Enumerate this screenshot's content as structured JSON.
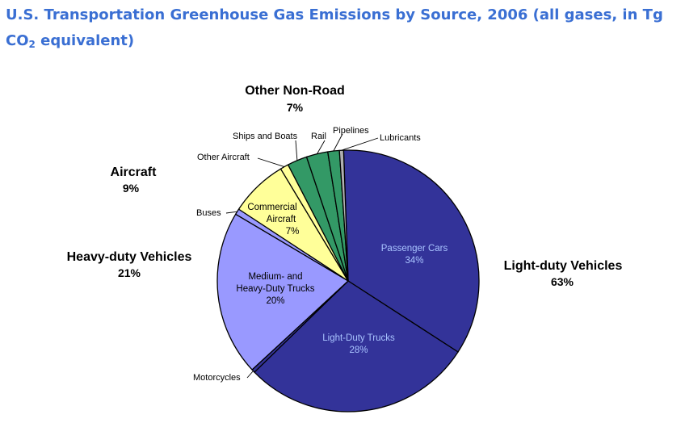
{
  "title": "U.S. Transportation Greenhouse Gas Emissions by Source, 2006 (all gases, in Tg CO",
  "title_sub": "2",
  "title_end": " equivalent)",
  "colors": {
    "title": "#3a6fd3",
    "light_duty": "#333399",
    "heavy_duty": "#9999ff",
    "aircraft": "#ffff99",
    "non_road": "#339966",
    "lubricants": "#b0b0b0",
    "outline": "#000000"
  },
  "chart_data": {
    "type": "pie",
    "title": "U.S. Transportation Greenhouse Gas Emissions by Source, 2006 (all gases, in Tg CO2 equivalent)",
    "start_angle_deg": -2,
    "direction": "clockwise",
    "slices": [
      {
        "label": "Passenger Cars",
        "value": 34,
        "pct_label": "34%",
        "group": "light_duty",
        "color": "#333399"
      },
      {
        "label": "Light-Duty Trucks",
        "value": 28,
        "pct_label": "28%",
        "group": "light_duty",
        "color": "#333399"
      },
      {
        "label": "Motorcycles",
        "value": 0.4,
        "group": "light_duty",
        "color": "#333399"
      },
      {
        "label": "Medium- and Heavy-Duty Trucks",
        "value": 20,
        "pct_label": "20%",
        "group": "heavy_duty",
        "color": "#9999ff"
      },
      {
        "label": "Buses",
        "value": 0.7,
        "group": "heavy_duty",
        "color": "#9999ff"
      },
      {
        "label": "Commercial Aircraft",
        "value": 7,
        "pct_label": "7%",
        "group": "aircraft",
        "color": "#ffff99"
      },
      {
        "label": "Other Aircraft",
        "value": 1,
        "group": "aircraft",
        "color": "#ffff99"
      },
      {
        "label": "Ships and Boats",
        "value": 2.4,
        "group": "non_road",
        "color": "#339966"
      },
      {
        "label": "Rail",
        "value": 2.6,
        "group": "non_road",
        "color": "#339966"
      },
      {
        "label": "Pipelines",
        "value": 1.4,
        "group": "non_road",
        "color": "#339966"
      },
      {
        "label": "Lubricants",
        "value": 0.5,
        "group": "non_road",
        "color": "#b0b0b0"
      }
    ],
    "groups": [
      {
        "key": "light_duty",
        "label": "Light-duty Vehicles",
        "pct_label": "63%",
        "value": 63
      },
      {
        "key": "heavy_duty",
        "label": "Heavy-duty Vehicles",
        "pct_label": "21%",
        "value": 21
      },
      {
        "key": "aircraft",
        "label": "Aircraft",
        "pct_label": "9%",
        "value": 9
      },
      {
        "key": "non_road",
        "label": "Other Non-Road",
        "pct_label": "7%",
        "value": 7
      }
    ]
  }
}
